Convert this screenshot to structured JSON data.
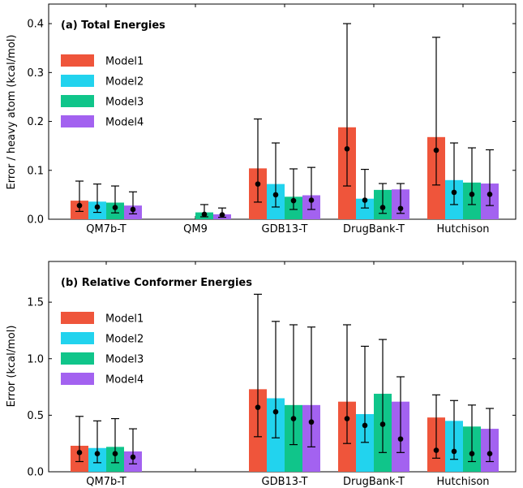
{
  "colors": {
    "Model1": "#ef553b",
    "Model2": "#22d3ee",
    "Model3": "#10c58a",
    "Model4": "#a362f0",
    "marker": "#000000",
    "frame": "#000000"
  },
  "chart_data": [
    {
      "type": "bar",
      "title": "(a) Total Energies",
      "ylabel": "Error / heavy atom (kcal/mol)",
      "xlabel": "",
      "ylim": [
        0,
        0.44
      ],
      "yticks": [
        0.0,
        0.1,
        0.2,
        0.3,
        0.4
      ],
      "ytick_labels": [
        "0.0",
        "0.1",
        "0.2",
        "0.3",
        "0.4"
      ],
      "grid": false,
      "legend_position": "upper-left",
      "categories": [
        "QM7b-T",
        "QM9",
        "GDB13-T",
        "DrugBank-T",
        "Hutchison"
      ],
      "series": [
        {
          "name": "Model1",
          "values": [
            0.038,
            null,
            0.104,
            0.188,
            0.168
          ],
          "markers": [
            0.028,
            null,
            0.072,
            0.144,
            0.141
          ],
          "err_low": [
            0.016,
            null,
            0.035,
            0.068,
            0.07
          ],
          "err_high": [
            0.078,
            null,
            0.205,
            0.4,
            0.372
          ]
        },
        {
          "name": "Model2",
          "values": [
            0.036,
            null,
            0.072,
            0.042,
            0.08
          ],
          "markers": [
            0.025,
            null,
            0.05,
            0.039,
            0.055
          ],
          "err_low": [
            0.014,
            null,
            0.025,
            0.023,
            0.03
          ],
          "err_high": [
            0.072,
            null,
            0.156,
            0.102,
            0.156
          ]
        },
        {
          "name": "Model3",
          "values": [
            0.034,
            0.014,
            0.046,
            0.06,
            0.075
          ],
          "markers": [
            0.024,
            0.01,
            0.038,
            0.024,
            0.051
          ],
          "err_low": [
            0.013,
            0.005,
            0.02,
            0.012,
            0.03
          ],
          "err_high": [
            0.068,
            0.03,
            0.103,
            0.073,
            0.146
          ]
        },
        {
          "name": "Model4",
          "values": [
            0.028,
            0.01,
            0.049,
            0.061,
            0.073
          ],
          "markers": [
            0.02,
            0.009,
            0.039,
            0.022,
            0.051
          ],
          "err_low": [
            0.011,
            0.004,
            0.02,
            0.012,
            0.028
          ],
          "err_high": [
            0.056,
            0.023,
            0.106,
            0.073,
            0.142
          ]
        }
      ]
    },
    {
      "type": "bar",
      "title": "(b) Relative Conformer Energies",
      "ylabel": "Error (kcal/mol)",
      "xlabel": "",
      "ylim": [
        0,
        1.86
      ],
      "yticks": [
        0.0,
        0.5,
        1.0,
        1.5
      ],
      "ytick_labels": [
        "0.0",
        "0.5",
        "1.0",
        "1.5"
      ],
      "grid": false,
      "legend_position": "upper-left",
      "categories": [
        "QM7b-T",
        "",
        "GDB13-T",
        "DrugBank-T",
        "Hutchison"
      ],
      "series": [
        {
          "name": "Model1",
          "values": [
            0.23,
            null,
            0.73,
            0.62,
            0.48
          ],
          "markers": [
            0.17,
            null,
            0.57,
            0.47,
            0.19
          ],
          "err_low": [
            0.09,
            null,
            0.31,
            0.25,
            0.12
          ],
          "err_high": [
            0.49,
            null,
            1.57,
            1.3,
            0.68
          ]
        },
        {
          "name": "Model2",
          "values": [
            0.21,
            null,
            0.65,
            0.51,
            0.45
          ],
          "markers": [
            0.16,
            null,
            0.53,
            0.41,
            0.18
          ],
          "err_low": [
            0.08,
            null,
            0.3,
            0.26,
            0.11
          ],
          "err_high": [
            0.45,
            null,
            1.33,
            1.11,
            0.63
          ]
        },
        {
          "name": "Model3",
          "values": [
            0.22,
            null,
            0.59,
            0.69,
            0.4
          ],
          "markers": [
            0.16,
            null,
            0.47,
            0.42,
            0.16
          ],
          "err_low": [
            0.08,
            null,
            0.24,
            0.17,
            0.09
          ],
          "err_high": [
            0.47,
            null,
            1.3,
            1.17,
            0.59
          ]
        },
        {
          "name": "Model4",
          "values": [
            0.18,
            null,
            0.59,
            0.62,
            0.38
          ],
          "markers": [
            0.13,
            null,
            0.44,
            0.29,
            0.16
          ],
          "err_low": [
            0.07,
            null,
            0.22,
            0.17,
            0.09
          ],
          "err_high": [
            0.38,
            null,
            1.28,
            0.84,
            0.56
          ]
        }
      ]
    }
  ]
}
